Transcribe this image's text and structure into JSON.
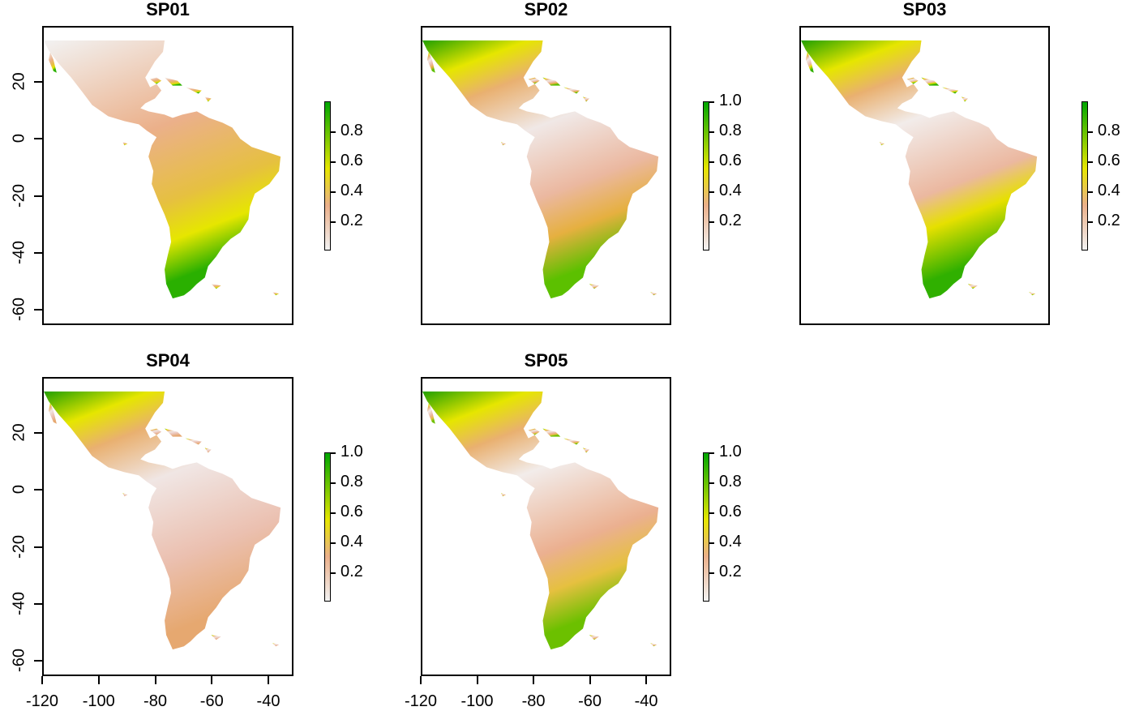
{
  "panels": [
    {
      "title": "SP01",
      "legend_ticks": [
        "0.8",
        "0.6",
        "0.4",
        "0.2"
      ],
      "show_y": true,
      "show_x": false
    },
    {
      "title": "SP02",
      "legend_ticks": [
        "1.0",
        "0.8",
        "0.6",
        "0.4",
        "0.2"
      ],
      "show_y": false,
      "show_x": false
    },
    {
      "title": "SP03",
      "legend_ticks": [
        "0.8",
        "0.6",
        "0.4",
        "0.2"
      ],
      "show_y": false,
      "show_x": false
    },
    {
      "title": "SP04",
      "legend_ticks": [
        "1.0",
        "0.8",
        "0.6",
        "0.4",
        "0.2"
      ],
      "show_y": true,
      "show_x": true
    },
    {
      "title": "SP05",
      "legend_ticks": [
        "1.0",
        "0.8",
        "0.6",
        "0.4",
        "0.2"
      ],
      "show_y": false,
      "show_x": true
    }
  ],
  "y_ticks": [
    "20",
    "0",
    "-20",
    "-40",
    "-60"
  ],
  "x_ticks": [
    "-120",
    "-100",
    "-80",
    "-60",
    "-40"
  ],
  "colors": {
    "low": "#f2f2f2",
    "mid_low": "#ebb08a",
    "mid": "#e6e600",
    "high": "#00a600"
  }
}
